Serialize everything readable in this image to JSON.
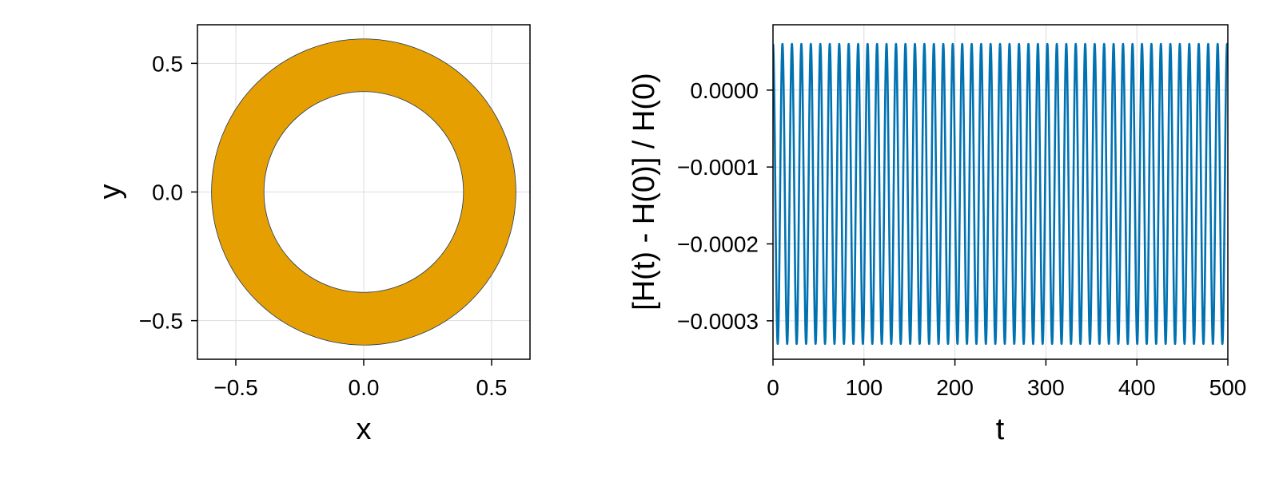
{
  "chart_data": [
    {
      "type": "scatter",
      "description": "phase-space orbit filling an annulus",
      "xlabel": "x",
      "ylabel": "y",
      "xlim": [
        -0.65,
        0.65
      ],
      "ylim": [
        -0.65,
        0.65
      ],
      "xticks": [
        -0.5,
        0.0,
        0.5
      ],
      "xtick_labels": [
        "−0.5",
        "0.0",
        "0.5"
      ],
      "yticks": [
        -0.5,
        0.0,
        0.5
      ],
      "ytick_labels": [
        "−0.5",
        "0.0",
        "0.5"
      ],
      "grid": true,
      "annulus": {
        "inner_radius": 0.39,
        "outer_radius": 0.595,
        "center": [
          0,
          0
        ]
      },
      "color": "#E69F00",
      "edge_color": "#1f3a5f"
    },
    {
      "type": "line",
      "xlabel": "t",
      "ylabel": "[H(t) - H(0)] / H(0)",
      "xlim": [
        0,
        500
      ],
      "ylim": [
        -0.00035,
        8.5e-05
      ],
      "xticks": [
        0,
        100,
        200,
        300,
        400,
        500
      ],
      "xtick_labels": [
        "0",
        "100",
        "200",
        "300",
        "400",
        "500"
      ],
      "yticks": [
        0.0,
        -0.0001,
        -0.0002,
        -0.0003
      ],
      "ytick_labels": [
        "0.0000",
        "−0.0001",
        "−0.0002",
        "−0.0003"
      ],
      "grid": true,
      "signal": {
        "max": 6e-05,
        "min": -0.00033,
        "period": 10.4,
        "t_start": 0,
        "t_end": 500
      },
      "color": "#0072B2"
    }
  ]
}
